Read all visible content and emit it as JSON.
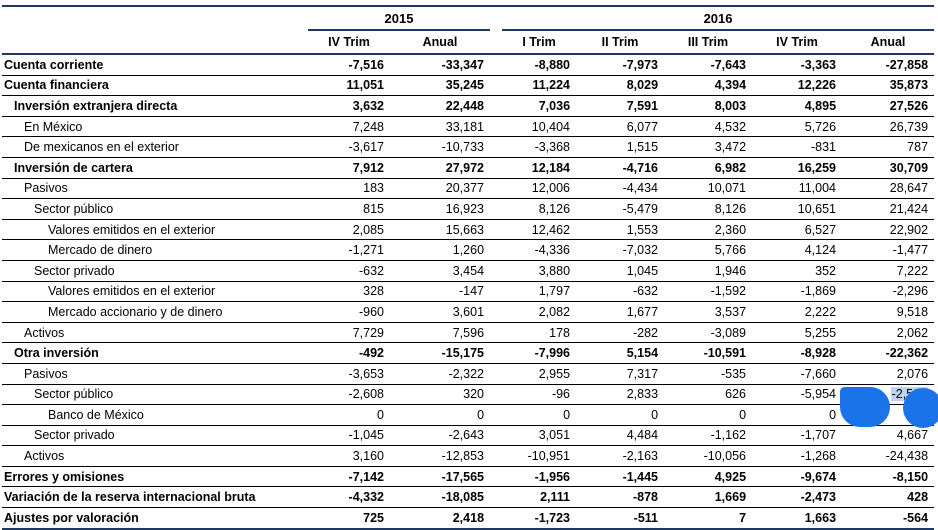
{
  "years": {
    "y2015": "2015",
    "y2016": "2016"
  },
  "columns": [
    "IV Trim",
    "Anual",
    "I Trim",
    "II Trim",
    "III Trim",
    "IV Trim",
    "Anual"
  ],
  "rows": [
    {
      "label": "Cuenta corriente",
      "values": [
        "-7,516",
        "-33,347",
        "-8,880",
        "-7,973",
        "-7,643",
        "-3,363",
        "-27,858"
      ]
    },
    {
      "label": "Cuenta financiera",
      "values": [
        "11,051",
        "35,245",
        "11,224",
        "8,029",
        "4,394",
        "12,226",
        "35,873"
      ]
    },
    {
      "label": "Inversión extranjera directa",
      "values": [
        "3,632",
        "22,448",
        "7,036",
        "7,591",
        "8,003",
        "4,895",
        "27,526"
      ]
    },
    {
      "label": "En México",
      "values": [
        "7,248",
        "33,181",
        "10,404",
        "6,077",
        "4,532",
        "5,726",
        "26,739"
      ]
    },
    {
      "label": "De mexicanos en el exterior",
      "values": [
        "-3,617",
        "-10,733",
        "-3,368",
        "1,515",
        "3,472",
        "-831",
        "787"
      ]
    },
    {
      "label": "Inversión de cartera",
      "values": [
        "7,912",
        "27,972",
        "12,184",
        "-4,716",
        "6,982",
        "16,259",
        "30,709"
      ]
    },
    {
      "label": "Pasivos",
      "values": [
        "183",
        "20,377",
        "12,006",
        "-4,434",
        "10,071",
        "11,004",
        "28,647"
      ]
    },
    {
      "label": "Sector público",
      "values": [
        "815",
        "16,923",
        "8,126",
        "-5,479",
        "8,126",
        "10,651",
        "21,424"
      ]
    },
    {
      "label": "Valores emitidos en el exterior",
      "values": [
        "2,085",
        "15,663",
        "12,462",
        "1,553",
        "2,360",
        "6,527",
        "22,902"
      ]
    },
    {
      "label": "Mercado de dinero",
      "values": [
        "-1,271",
        "1,260",
        "-4,336",
        "-7,032",
        "5,766",
        "4,124",
        "-1,477"
      ]
    },
    {
      "label": "Sector privado",
      "values": [
        "-632",
        "3,454",
        "3,880",
        "1,045",
        "1,946",
        "352",
        "7,222"
      ]
    },
    {
      "label": "Valores emitidos en el exterior",
      "values": [
        "328",
        "-147",
        "1,797",
        "-632",
        "-1,592",
        "-1,869",
        "-2,296"
      ]
    },
    {
      "label": "Mercado accionario y de dinero",
      "values": [
        "-960",
        "3,601",
        "2,082",
        "1,677",
        "3,537",
        "2,222",
        "9,518"
      ]
    },
    {
      "label": "Activos",
      "values": [
        "7,729",
        "7,596",
        "178",
        "-282",
        "-3,089",
        "5,255",
        "2,062"
      ]
    },
    {
      "label": "Otra inversión",
      "values": [
        "-492",
        "-15,175",
        "-7,996",
        "5,154",
        "-10,591",
        "-8,928",
        "-22,362"
      ]
    },
    {
      "label": "Pasivos",
      "values": [
        "-3,653",
        "-2,322",
        "2,955",
        "7,317",
        "-535",
        "-7,660",
        "2,076"
      ]
    },
    {
      "label": "Sector público",
      "values": [
        "-2,608",
        "320",
        "-96",
        "2,833",
        "626",
        "-5,954",
        "-2,591"
      ]
    },
    {
      "label": "Banco de México",
      "values": [
        "0",
        "0",
        "0",
        "0",
        "0",
        "0",
        "0"
      ]
    },
    {
      "label": "Sector privado",
      "values": [
        "-1,045",
        "-2,643",
        "3,051",
        "4,484",
        "-1,162",
        "-1,707",
        "4,667"
      ]
    },
    {
      "label": "Activos",
      "values": [
        "3,160",
        "-12,853",
        "-10,951",
        "-2,163",
        "-10,056",
        "-1,268",
        "-24,438"
      ]
    },
    {
      "label": "Errores y omisiones",
      "values": [
        "-7,142",
        "-17,565",
        "-1,956",
        "-1,445",
        "4,925",
        "-9,674",
        "-8,150"
      ]
    },
    {
      "label": "Variación de la reserva internacional bruta",
      "values": [
        "-4,332",
        "-18,085",
        "2,111",
        "-878",
        "1,669",
        "-2,473",
        "428"
      ]
    },
    {
      "label": "Ajustes por valoración",
      "values": [
        "725",
        "2,418",
        "-1,723",
        "-511",
        "7",
        "1,663",
        "-564"
      ]
    }
  ],
  "colors": {
    "rule": "#1f3864",
    "selection": "#bcd6f2",
    "cursor_blob": "#1a73e8"
  }
}
